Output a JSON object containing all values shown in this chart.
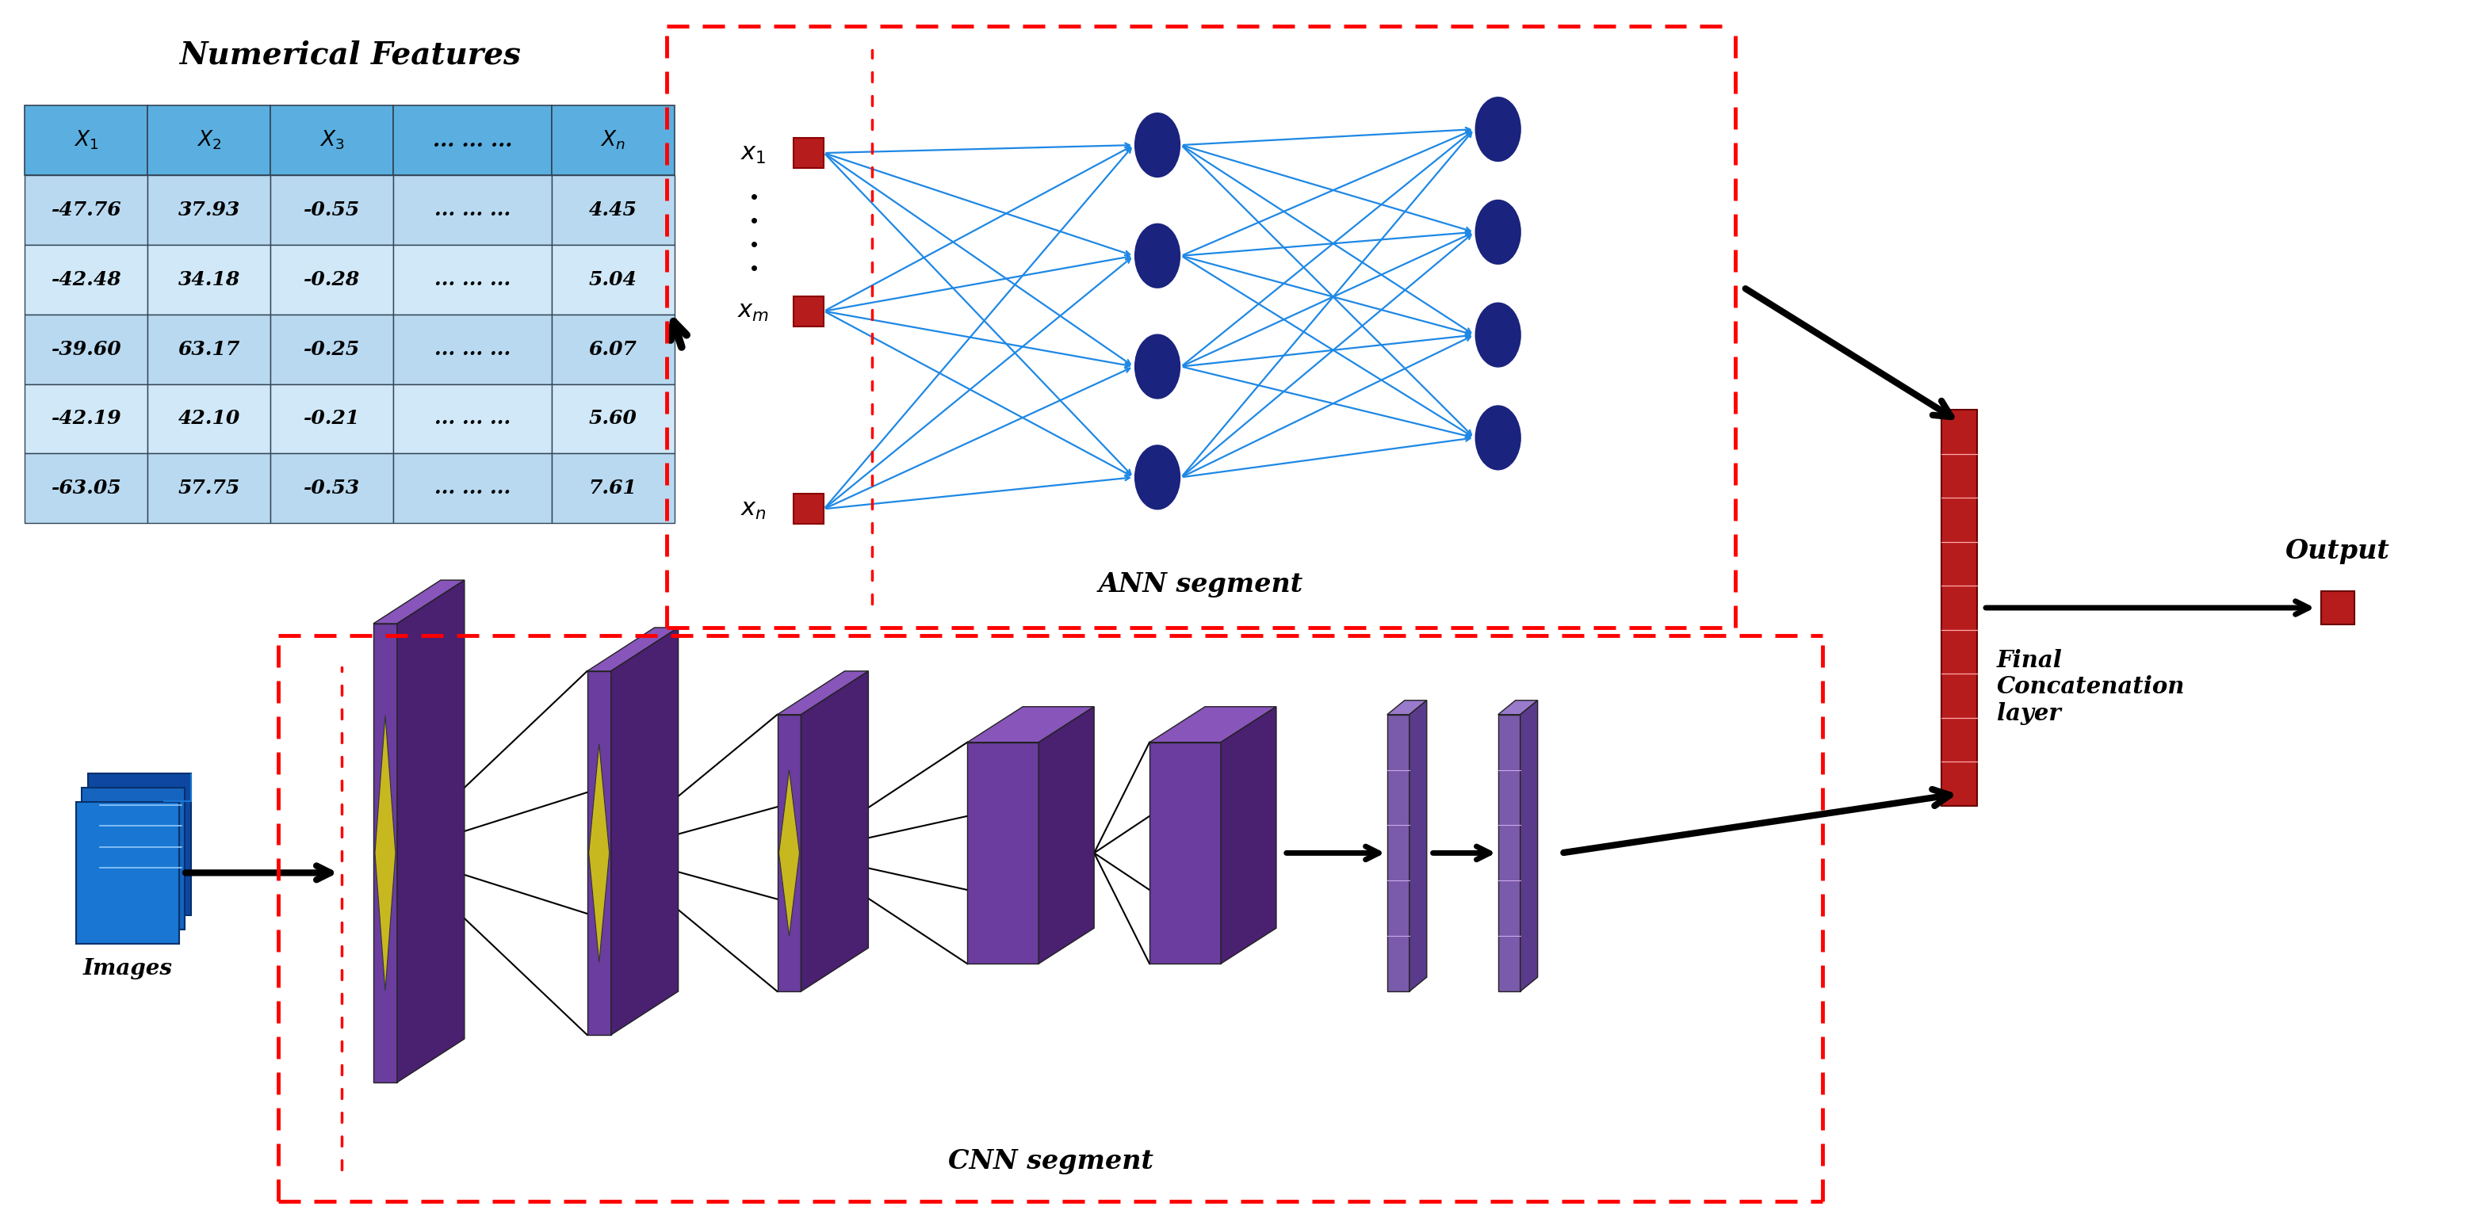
{
  "table_title": "Numerical Features",
  "table_headers": [
    "$X_1$",
    "$X_2$",
    "$X_3$",
    "... ... ...",
    "$X_n$"
  ],
  "table_data": [
    [
      "-47.76",
      "37.93",
      "-0.55",
      "... ... ...",
      "4.45"
    ],
    [
      "-42.48",
      "34.18",
      "-0.28",
      "... ... ...",
      "5.04"
    ],
    [
      "-39.60",
      "63.17",
      "-0.25",
      "... ... ...",
      "6.07"
    ],
    [
      "-42.19",
      "42.10",
      "-0.21",
      "... ... ...",
      "5.60"
    ],
    [
      "-63.05",
      "57.75",
      "-0.53",
      "... ... ...",
      "7.61"
    ]
  ],
  "table_header_bg": "#5aafe0",
  "table_row_bg_light": "#b8d9f0",
  "table_row_bg_lighter": "#d0e8f7",
  "neuron_color": "#1a237e",
  "connection_color": "#1e88e5",
  "input_node_color": "#b71c1c",
  "concat_color": "#b71c1c",
  "output_color": "#b71c1c",
  "ann_label": "ANN segment",
  "cnn_label": "CNN segment",
  "output_label": "Output",
  "concat_label": "Final\nConcatenation\nlayer",
  "images_label": "Images",
  "input_labels_ann": [
    "$x_1$",
    "$x_m$",
    "$x_n$"
  ],
  "purple_face": "#6a3d9e",
  "purple_side": "#4a2070",
  "purple_top": "#8855bb",
  "yellow_face": "#c8b820",
  "yellow_side": "#a09010",
  "yellow_top": "#ddd030",
  "purple_bar_face": "#7a5aaa",
  "purple_bar_side": "#5a3a8a",
  "purple_bar_top": "#9a7aca"
}
